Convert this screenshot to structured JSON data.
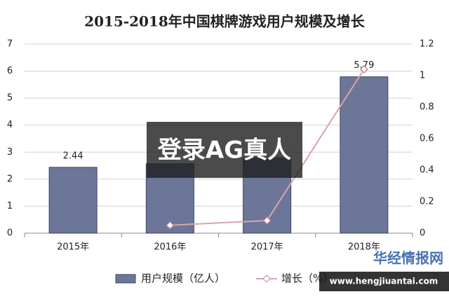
{
  "chart_data": {
    "type": "bar_line",
    "title": "2015-2018年中国棋牌游戏用户规模及增长",
    "categories": [
      "2015年",
      "2016年",
      "2017年",
      "2018年"
    ],
    "series": [
      {
        "name": "用户规模（亿人）",
        "color": "#6b7698",
        "values": [
          2.44,
          2.57,
          2.79,
          5.79
        ],
        "value_labels": [
          "2.44",
          null,
          null,
          "5.79"
        ]
      },
      {
        "name": "增长（%）",
        "color": "#d9a3aa",
        "axis": "y2",
        "values": [
          null,
          0.05,
          0.08,
          1.04
        ]
      }
    ],
    "ylim": [
      0,
      7
    ],
    "yticks": [
      0,
      1,
      2,
      3,
      4,
      5,
      6,
      7
    ],
    "y2lim": [
      0,
      1.2
    ],
    "y2ticks": [
      0,
      0.2,
      0.4,
      0.6,
      0.8,
      1,
      1.2
    ],
    "grid": true,
    "legend": "bottom"
  },
  "overlay": "登录AG真人",
  "watermark": {
    "name": "华经情报网",
    "url": "www.hengjiuantai.com"
  }
}
